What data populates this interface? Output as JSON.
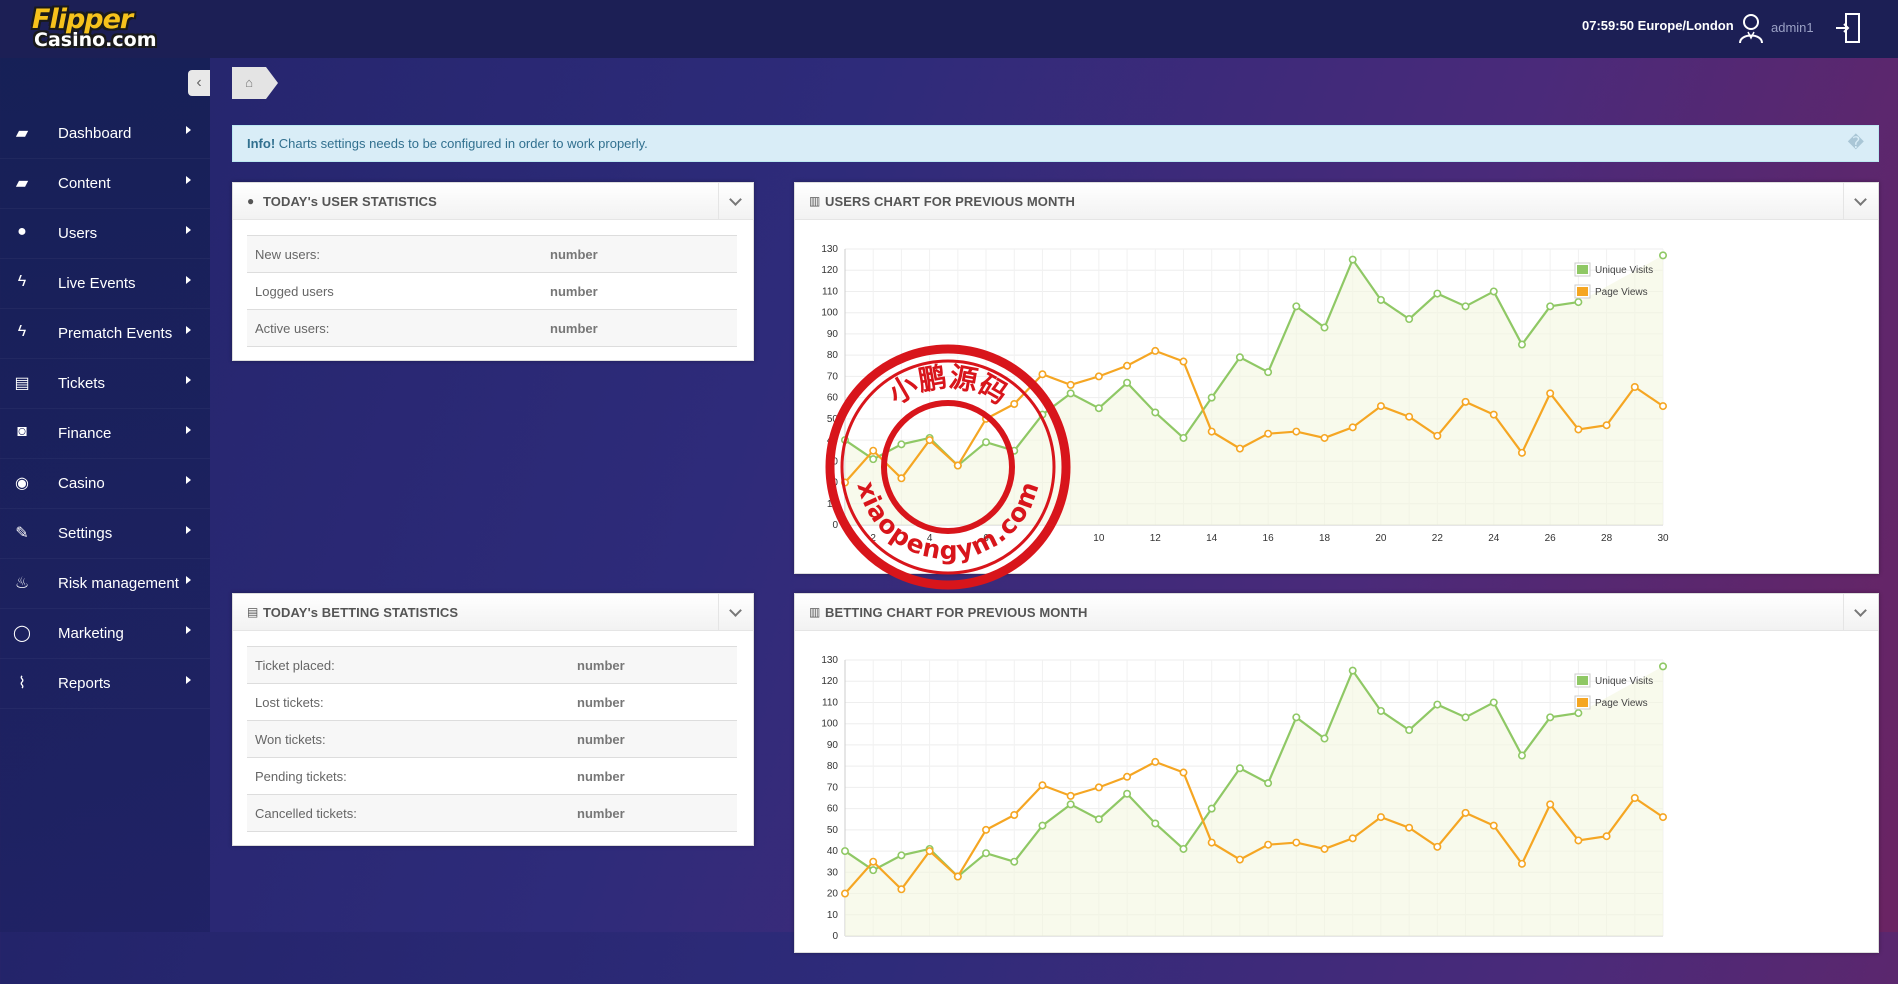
{
  "header": {
    "logo_line1": "Flipper",
    "logo_line2": "Casino.com",
    "clock": "07:59:50 Europe/London",
    "username": "admin1"
  },
  "sidebar": {
    "items": [
      {
        "label": "Dashboard",
        "icon": "book-icon"
      },
      {
        "label": "Content",
        "icon": "book-icon"
      },
      {
        "label": "Users",
        "icon": "user-icon"
      },
      {
        "label": "Live Events",
        "icon": "bolt-icon"
      },
      {
        "label": "Prematch Events",
        "icon": "bolt-icon"
      },
      {
        "label": "Tickets",
        "icon": "file-icon"
      },
      {
        "label": "Finance",
        "icon": "money-icon"
      },
      {
        "label": "Casino",
        "icon": "play-icon"
      },
      {
        "label": "Settings",
        "icon": "wrench-icon"
      },
      {
        "label": "Risk management",
        "icon": "fire-icon"
      },
      {
        "label": "Marketing",
        "icon": "comment-icon"
      },
      {
        "label": "Reports",
        "icon": "paperclip-icon"
      }
    ]
  },
  "info": {
    "strong": "Info!",
    "text": " Charts settings needs to be configured in order to work properly."
  },
  "user_stats": {
    "title": "TODAY's USER STATISTICS",
    "rows": [
      {
        "label": "New users:",
        "value": "number"
      },
      {
        "label": "Logged users",
        "value": "number"
      },
      {
        "label": "Active users:",
        "value": "number"
      }
    ]
  },
  "betting_stats": {
    "title": "TODAY's BETTING STATISTICS",
    "rows": [
      {
        "label": "Ticket placed:",
        "value": "number"
      },
      {
        "label": "Lost tickets:",
        "value": "number"
      },
      {
        "label": "Won tickets:",
        "value": "number"
      },
      {
        "label": "Pending tickets:",
        "value": "number"
      },
      {
        "label": "Cancelled tickets:",
        "value": "number"
      }
    ]
  },
  "users_chart_panel": {
    "title": "USERS CHART FOR PREVIOUS MONTH"
  },
  "betting_chart_panel": {
    "title": "BETTING CHART FOR PREVIOUS MONTH"
  },
  "watermark": {
    "top_text": "小鹏源码",
    "bottom_text": "xiaopengym.com",
    "color": "#d8151b"
  },
  "chart_data": [
    {
      "type": "line",
      "title": "USERS CHART FOR PREVIOUS MONTH",
      "x": [
        1,
        2,
        3,
        4,
        5,
        6,
        7,
        8,
        9,
        10,
        11,
        12,
        13,
        14,
        15,
        16,
        17,
        18,
        19,
        20,
        21,
        22,
        23,
        24,
        25,
        26,
        27,
        28,
        29,
        30
      ],
      "xticks": [
        2,
        4,
        6,
        8,
        10,
        12,
        14,
        16,
        18,
        20,
        22,
        24,
        26,
        28,
        30
      ],
      "yticks": [
        0,
        10,
        20,
        30,
        40,
        50,
        60,
        70,
        80,
        90,
        100,
        110,
        120,
        130
      ],
      "ylim": [
        0,
        130
      ],
      "xlim": [
        1,
        30
      ],
      "grid": true,
      "legend_position": "top-right",
      "series": [
        {
          "name": "Unique Visits",
          "color": "#8fc865",
          "values": [
            40,
            31,
            38,
            41,
            28,
            39,
            35,
            52,
            62,
            55,
            67,
            53,
            41,
            60,
            79,
            72,
            103,
            93,
            125,
            106,
            97,
            109,
            103,
            110,
            85,
            103,
            105,
            null,
            null,
            127
          ]
        },
        {
          "name": "Page Views",
          "color": "#f5a623",
          "values": [
            20,
            35,
            22,
            40,
            28,
            50,
            57,
            71,
            66,
            70,
            75,
            82,
            77,
            44,
            36,
            43,
            44,
            41,
            46,
            56,
            51,
            42,
            58,
            52,
            34,
            62,
            45,
            47,
            65,
            56
          ]
        }
      ]
    },
    {
      "type": "line",
      "title": "BETTING CHART FOR PREVIOUS MONTH",
      "x": [
        1,
        2,
        3,
        4,
        5,
        6,
        7,
        8,
        9,
        10,
        11,
        12,
        13,
        14,
        15,
        16,
        17,
        18,
        19,
        20,
        21,
        22,
        23,
        24,
        25,
        26,
        27,
        28,
        29,
        30
      ],
      "yticks": [
        0,
        10,
        20,
        30,
        40,
        50,
        60,
        70,
        80,
        90,
        100,
        110,
        120,
        130
      ],
      "ylim": [
        0,
        130
      ],
      "xlim": [
        1,
        30
      ],
      "grid": true,
      "legend_position": "top-right",
      "series": [
        {
          "name": "Unique Visits",
          "color": "#8fc865",
          "values": [
            40,
            31,
            38,
            41,
            28,
            39,
            35,
            52,
            62,
            55,
            67,
            53,
            41,
            60,
            79,
            72,
            103,
            93,
            125,
            106,
            97,
            109,
            103,
            110,
            85,
            103,
            105,
            null,
            null,
            127
          ]
        },
        {
          "name": "Page Views",
          "color": "#f5a623",
          "values": [
            20,
            35,
            22,
            40,
            28,
            50,
            57,
            71,
            66,
            70,
            75,
            82,
            77,
            44,
            36,
            43,
            44,
            41,
            46,
            56,
            51,
            42,
            58,
            52,
            34,
            62,
            45,
            47,
            65,
            56
          ]
        }
      ]
    }
  ]
}
